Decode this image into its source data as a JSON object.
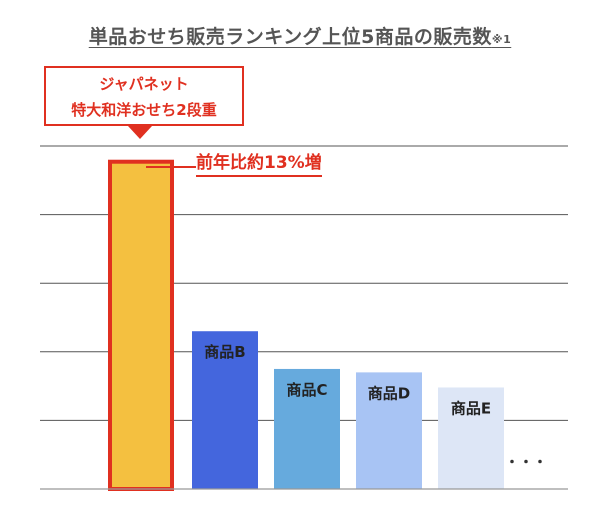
{
  "chart_data": {
    "type": "bar",
    "title": "単品おせち販売ランキング上位5商品の販売数",
    "title_note": "※1",
    "xlabel": "",
    "ylabel": "",
    "ylim": [
      0,
      5
    ],
    "grid": true,
    "categories": [
      "ジャパネット特大和洋おせち2段重",
      "商品B",
      "商品C",
      "商品D",
      "商品E"
    ],
    "values": [
      4.8,
      2.3,
      1.75,
      1.7,
      1.48
    ],
    "bar_labels": [
      "",
      "商品B",
      "商品C",
      "商品D",
      "商品E"
    ],
    "colors": [
      "#f4c040",
      "#4466dd",
      "#66aadd",
      "#a8c4f4",
      "#dde6f6"
    ],
    "highlight_border": "#e03020",
    "ellipsis": "・・・",
    "callout": {
      "line1": "ジャパネット",
      "line2": "特大和洋おせち2段重",
      "growth_note": "前年比約13%増",
      "color": "#e03020"
    }
  }
}
